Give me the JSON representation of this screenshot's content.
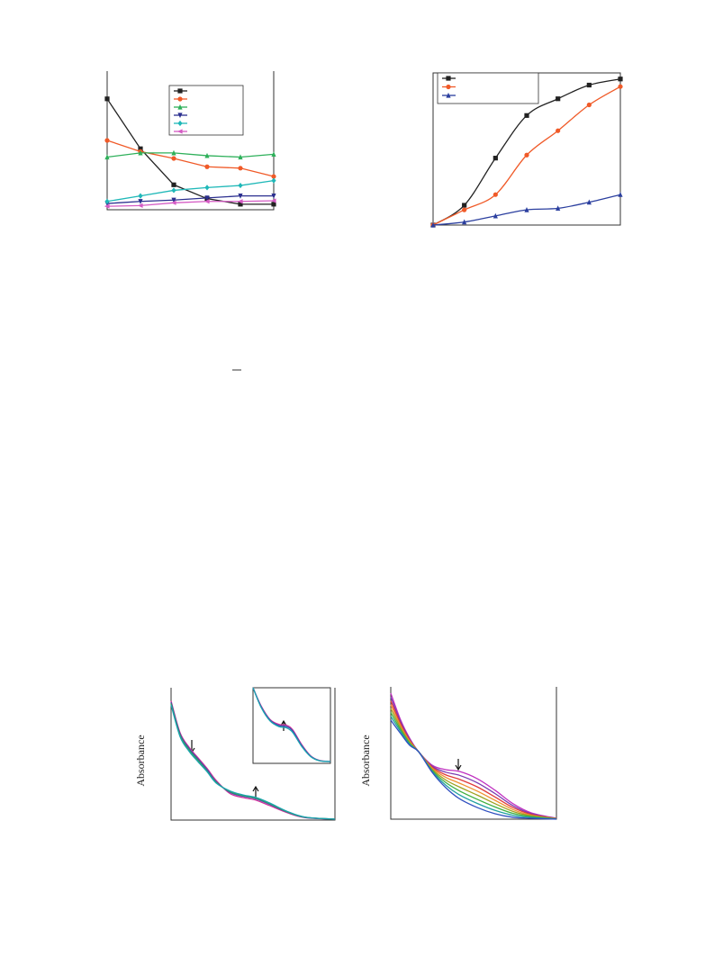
{
  "chart_data": [
    {
      "type": "line",
      "x": [
        0,
        1,
        2,
        3,
        4,
        5
      ],
      "xlim": [
        0,
        5
      ],
      "ylim": [
        0,
        10
      ],
      "legend": "upper right",
      "series": [
        {
          "color": "#222222",
          "marker": "square",
          "values": [
            8.0,
            4.4,
            1.8,
            0.8,
            0.4,
            0.4
          ]
        },
        {
          "color": "#f05a28",
          "marker": "circle",
          "values": [
            5.0,
            4.2,
            3.7,
            3.1,
            3.0,
            2.4
          ]
        },
        {
          "color": "#2eb05a",
          "marker": "triangle",
          "values": [
            3.8,
            4.1,
            4.1,
            3.9,
            3.8,
            4.0
          ]
        },
        {
          "color": "#2b2f8f",
          "marker": "triangle-down",
          "values": [
            0.45,
            0.6,
            0.7,
            0.85,
            1.0,
            1.0
          ]
        },
        {
          "color": "#1fb8b8",
          "marker": "diamond",
          "values": [
            0.6,
            1.0,
            1.4,
            1.6,
            1.75,
            2.1
          ]
        },
        {
          "color": "#d55bc4",
          "marker": "triangle-left",
          "values": [
            0.25,
            0.3,
            0.5,
            0.6,
            0.6,
            0.65
          ]
        }
      ]
    },
    {
      "type": "line",
      "smooth": true,
      "x": [
        0,
        1,
        2,
        3,
        4,
        5,
        6
      ],
      "xlim": [
        0,
        6
      ],
      "ylim": [
        0,
        10
      ],
      "legend": "upper left",
      "series": [
        {
          "color": "#222222",
          "marker": "square",
          "values": [
            0,
            1.3,
            4.4,
            7.2,
            8.3,
            9.2,
            9.6
          ]
        },
        {
          "color": "#f05a28",
          "marker": "circle",
          "values": [
            0,
            1.0,
            2.0,
            4.6,
            6.2,
            7.9,
            9.1
          ]
        },
        {
          "color": "#2b3f9f",
          "marker": "triangle",
          "values": [
            0,
            0.2,
            0.6,
            1.0,
            1.1,
            1.5,
            2.0
          ]
        }
      ]
    },
    {
      "type": "line",
      "smooth": true,
      "y_label": "Absorbance",
      "x": [
        0,
        0.55,
        1.1,
        1.65,
        2.2,
        2.75,
        3.6,
        4.4,
        5.2,
        6.0,
        7.1,
        8.2,
        10
      ],
      "xlim": [
        0,
        10
      ],
      "ylim": [
        0,
        10
      ],
      "series": [
        {
          "color": "#d0309a",
          "values": [
            9.0,
            6.6,
            5.5,
            4.7,
            3.9,
            3.0,
            2.0,
            1.7,
            1.5,
            1.1,
            0.55,
            0.18,
            0.07
          ]
        },
        {
          "color": "#3a4fb0",
          "values": [
            8.9,
            6.5,
            5.4,
            4.6,
            3.8,
            2.9,
            2.1,
            1.8,
            1.6,
            1.2,
            0.6,
            0.2,
            0.07
          ]
        },
        {
          "color": "#3aa050",
          "values": [
            8.8,
            6.4,
            5.3,
            4.5,
            3.7,
            2.85,
            2.15,
            1.85,
            1.65,
            1.25,
            0.62,
            0.21,
            0.07
          ]
        },
        {
          "color": "#1aa3b0",
          "values": [
            8.7,
            6.3,
            5.2,
            4.4,
            3.65,
            2.8,
            2.2,
            1.9,
            1.7,
            1.3,
            0.65,
            0.22,
            0.07
          ]
        }
      ]
    },
    {
      "type": "line",
      "smooth": true,
      "x": [
        0,
        1.05,
        2.21,
        3.37,
        4.3,
        5.12,
        6.28,
        7.44,
        8.6,
        10
      ],
      "xlim": [
        0,
        10
      ],
      "ylim": [
        0,
        10
      ],
      "series": [
        {
          "color": "#d0309a",
          "values": [
            10,
            7.6,
            5.8,
            5.15,
            5.05,
            4.45,
            2.5,
            1.0,
            0.38,
            0.24
          ]
        },
        {
          "color": "#3a4fb0",
          "values": [
            10,
            7.5,
            5.71,
            5.0,
            4.88,
            4.29,
            2.38,
            0.95,
            0.36,
            0.24
          ]
        },
        {
          "color": "#1aa3b0",
          "values": [
            10,
            7.4,
            5.6,
            4.85,
            4.7,
            4.1,
            2.25,
            0.9,
            0.34,
            0.24
          ]
        }
      ]
    },
    {
      "type": "line",
      "smooth": true,
      "y_label": "Absorbance",
      "x": [
        0,
        0.6,
        1.14,
        1.68,
        2.5,
        3.32,
        4.13,
        5.22,
        6.3,
        7.39,
        8.48,
        10
      ],
      "xlim": [
        0,
        10
      ],
      "ylim": [
        0,
        10
      ],
      "series": [
        {
          "color": "#c030c0",
          "values": [
            9.52,
            7.48,
            6.12,
            5.1,
            4.08,
            3.74,
            3.61,
            3.06,
            2.18,
            1.16,
            0.48,
            0.07
          ]
        },
        {
          "color": "#7a3ab0",
          "values": [
            9.23,
            7.33,
            6.04,
            5.1,
            4.0,
            3.55,
            3.32,
            2.75,
            1.93,
            1.01,
            0.42,
            0.06
          ]
        },
        {
          "color": "#e03a3a",
          "values": [
            8.94,
            7.19,
            5.97,
            5.1,
            3.93,
            3.35,
            3.02,
            2.44,
            1.67,
            0.87,
            0.36,
            0.05
          ]
        },
        {
          "color": "#f09030",
          "values": [
            8.65,
            7.04,
            5.89,
            5.1,
            3.85,
            3.16,
            2.73,
            2.12,
            1.42,
            0.72,
            0.3,
            0.04
          ]
        },
        {
          "color": "#a0a020",
          "values": [
            8.35,
            6.9,
            5.81,
            5.1,
            3.77,
            2.96,
            2.44,
            1.82,
            1.17,
            0.58,
            0.25,
            0.03
          ]
        },
        {
          "color": "#40b040",
          "values": [
            8.06,
            6.75,
            5.73,
            5.1,
            3.69,
            2.77,
            2.15,
            1.5,
            0.92,
            0.43,
            0.19,
            0.02
          ]
        },
        {
          "color": "#20a0a0",
          "values": [
            7.77,
            6.61,
            5.66,
            5.1,
            3.62,
            2.57,
            1.85,
            1.19,
            0.66,
            0.29,
            0.13,
            0.01
          ]
        },
        {
          "color": "#3050c0",
          "values": [
            7.48,
            6.46,
            5.58,
            5.1,
            3.54,
            2.38,
            1.56,
            0.88,
            0.41,
            0.14,
            0.07,
            0
          ]
        }
      ]
    }
  ]
}
